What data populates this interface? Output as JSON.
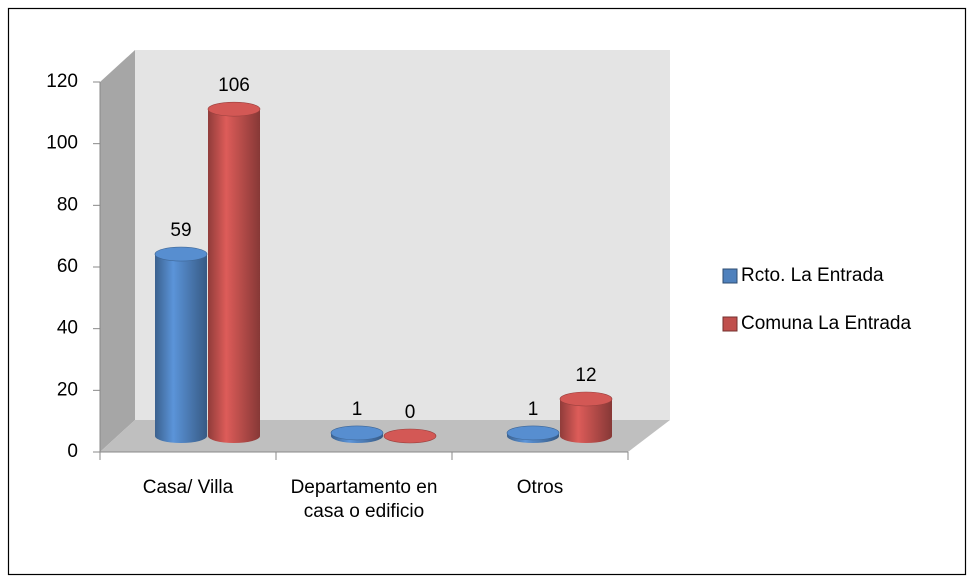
{
  "chart_data": {
    "type": "bar3d",
    "categories": [
      "Casa/ Villa",
      "Departamento en casa o edificio",
      "Otros"
    ],
    "series": [
      {
        "name": "Rcto. La Entrada",
        "color": "#4f81bd",
        "values": [
          59,
          1,
          1
        ]
      },
      {
        "name": "Comuna La Entrada",
        "color": "#c0504d",
        "values": [
          106,
          0,
          12
        ]
      }
    ],
    "ylim": [
      0,
      120
    ],
    "yticks": [
      0,
      20,
      40,
      60,
      80,
      100,
      120
    ],
    "grid": false,
    "legend": "right"
  }
}
